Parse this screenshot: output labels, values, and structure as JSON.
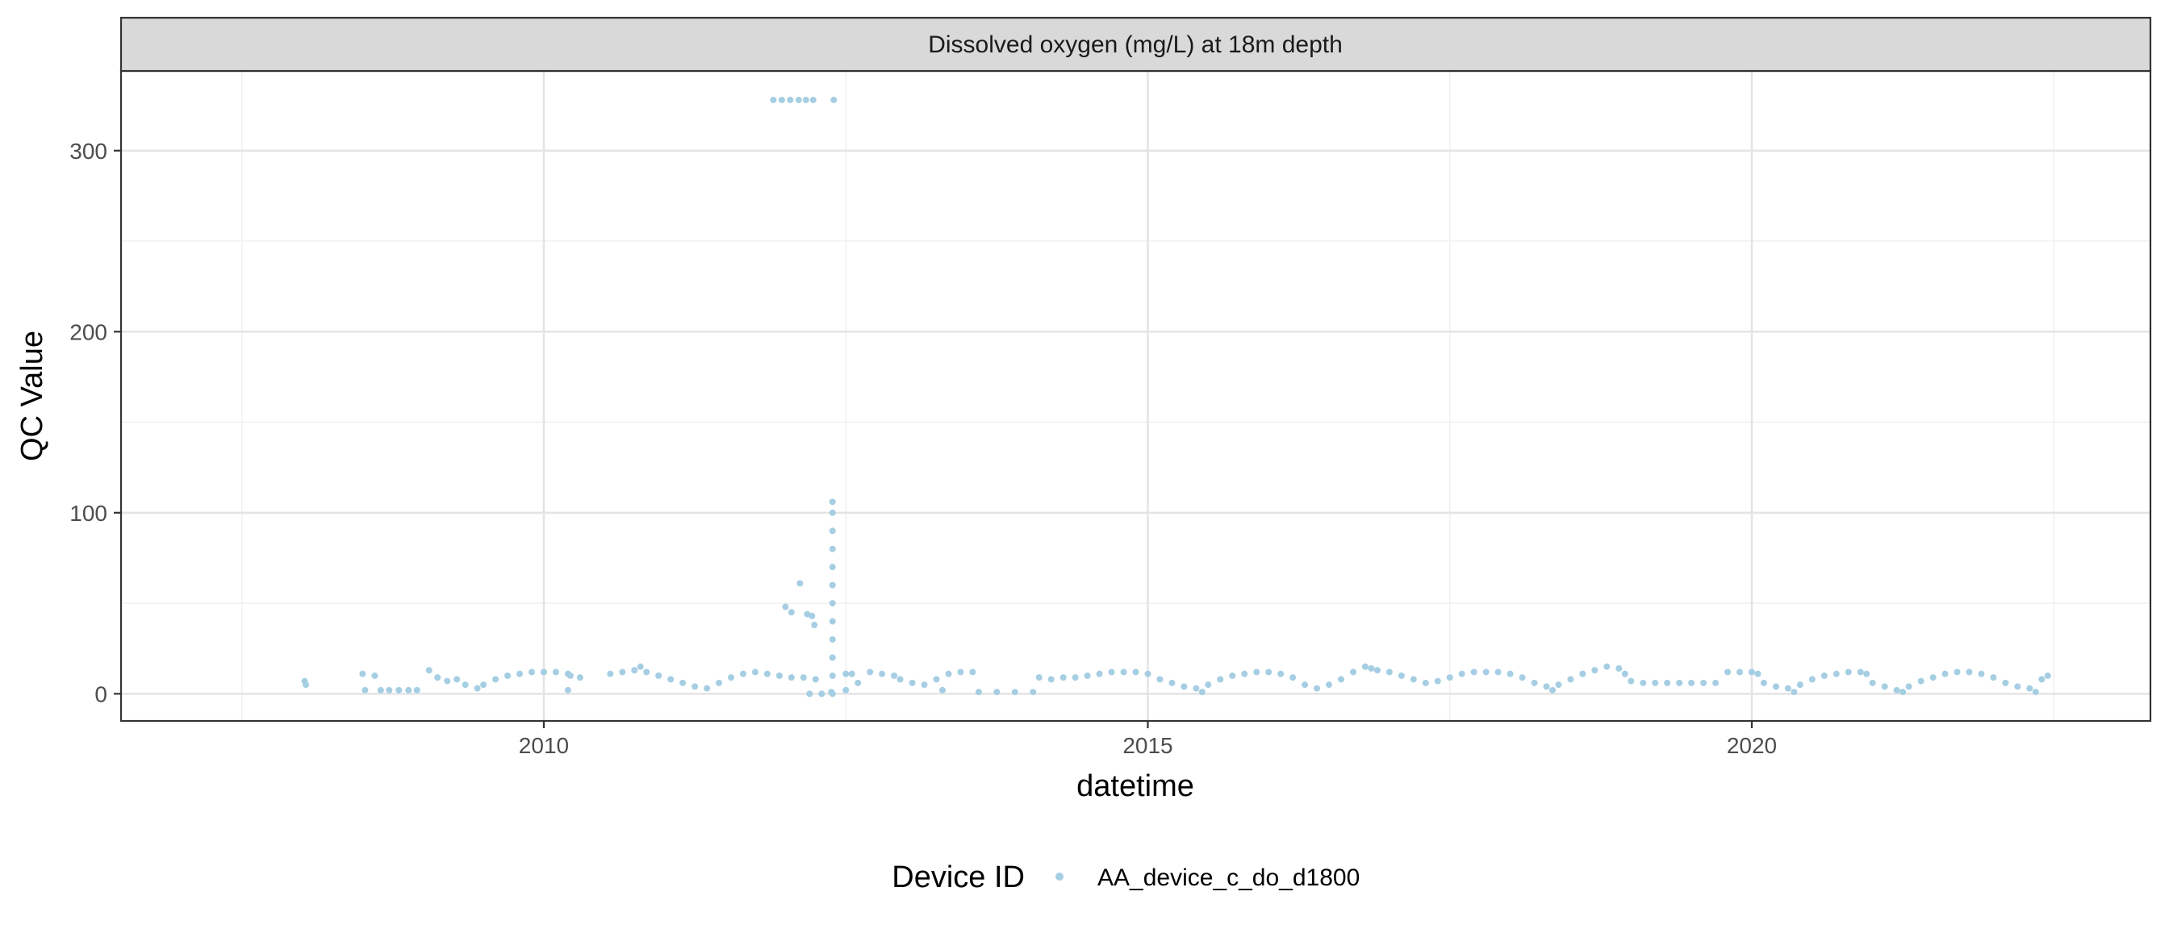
{
  "chart_data": {
    "type": "scatter",
    "title": "Dissolved oxygen (mg/L) at 18m depth",
    "xlabel": "datetime",
    "ylabel": "QC Value",
    "xlim": [
      2006.5,
      2023.3
    ],
    "ylim": [
      -15,
      344
    ],
    "x_ticks": [
      {
        "value": 2010,
        "label": "2010"
      },
      {
        "value": 2015,
        "label": "2015"
      },
      {
        "value": 2020,
        "label": "2020"
      }
    ],
    "y_ticks": [
      {
        "value": 0,
        "label": "0"
      },
      {
        "value": 100,
        "label": "100"
      },
      {
        "value": 200,
        "label": "200"
      },
      {
        "value": 300,
        "label": "300"
      }
    ],
    "grid": true,
    "legend": {
      "title": "Device ID",
      "position": "bottom"
    },
    "series": [
      {
        "name": "AA_device_c_do_d1800",
        "color": "#a6cee3",
        "points": [
          [
            2008.02,
            7
          ],
          [
            2008.03,
            5
          ],
          [
            2008.5,
            11
          ],
          [
            2008.52,
            2
          ],
          [
            2008.6,
            10
          ],
          [
            2008.65,
            2
          ],
          [
            2008.72,
            2
          ],
          [
            2008.8,
            2
          ],
          [
            2008.88,
            2
          ],
          [
            2008.95,
            2
          ],
          [
            2009.05,
            13
          ],
          [
            2009.12,
            9
          ],
          [
            2009.2,
            7
          ],
          [
            2009.28,
            8
          ],
          [
            2009.35,
            5
          ],
          [
            2009.45,
            3
          ],
          [
            2009.5,
            5
          ],
          [
            2009.6,
            8
          ],
          [
            2009.7,
            10
          ],
          [
            2009.8,
            11
          ],
          [
            2009.9,
            12
          ],
          [
            2010.0,
            12
          ],
          [
            2010.1,
            12
          ],
          [
            2010.2,
            11
          ],
          [
            2010.2,
            2
          ],
          [
            2010.22,
            10
          ],
          [
            2010.3,
            9
          ],
          [
            2010.55,
            11
          ],
          [
            2010.65,
            12
          ],
          [
            2010.75,
            13
          ],
          [
            2010.8,
            15
          ],
          [
            2010.85,
            12
          ],
          [
            2010.95,
            10
          ],
          [
            2011.05,
            8
          ],
          [
            2011.15,
            6
          ],
          [
            2011.25,
            4
          ],
          [
            2011.35,
            3
          ],
          [
            2011.45,
            6
          ],
          [
            2011.55,
            9
          ],
          [
            2011.65,
            11
          ],
          [
            2011.75,
            12
          ],
          [
            2011.85,
            11
          ],
          [
            2011.95,
            10
          ],
          [
            2012.05,
            9
          ],
          [
            2012.15,
            9
          ],
          [
            2012.25,
            8
          ],
          [
            2012.2,
            0
          ],
          [
            2012.3,
            0
          ],
          [
            2012.38,
            1
          ],
          [
            2012.0,
            48
          ],
          [
            2012.05,
            45
          ],
          [
            2012.12,
            61
          ],
          [
            2012.18,
            44
          ],
          [
            2012.22,
            43
          ],
          [
            2012.24,
            38
          ],
          [
            2011.9,
            328
          ],
          [
            2011.97,
            328
          ],
          [
            2012.04,
            328
          ],
          [
            2012.11,
            328
          ],
          [
            2012.17,
            328
          ],
          [
            2012.23,
            328
          ],
          [
            2012.4,
            328
          ],
          [
            2012.39,
            0
          ],
          [
            2012.39,
            10
          ],
          [
            2012.39,
            20
          ],
          [
            2012.39,
            30
          ],
          [
            2012.39,
            40
          ],
          [
            2012.39,
            50
          ],
          [
            2012.39,
            60
          ],
          [
            2012.39,
            70
          ],
          [
            2012.39,
            80
          ],
          [
            2012.39,
            90
          ],
          [
            2012.39,
            100
          ],
          [
            2012.39,
            106
          ],
          [
            2012.5,
            11
          ],
          [
            2012.55,
            11
          ],
          [
            2012.7,
            12
          ],
          [
            2012.8,
            11
          ],
          [
            2012.9,
            10
          ],
          [
            2012.95,
            8
          ],
          [
            2012.5,
            2
          ],
          [
            2012.6,
            6
          ],
          [
            2013.05,
            6
          ],
          [
            2013.15,
            5
          ],
          [
            2013.25,
            8
          ],
          [
            2013.35,
            11
          ],
          [
            2013.45,
            12
          ],
          [
            2013.55,
            12
          ],
          [
            2013.3,
            2
          ],
          [
            2013.6,
            1
          ],
          [
            2013.75,
            1
          ],
          [
            2013.9,
            1
          ],
          [
            2014.05,
            1
          ],
          [
            2014.1,
            9
          ],
          [
            2014.2,
            8
          ],
          [
            2014.3,
            9
          ],
          [
            2014.4,
            9
          ],
          [
            2014.5,
            10
          ],
          [
            2014.6,
            11
          ],
          [
            2014.7,
            12
          ],
          [
            2014.8,
            12
          ],
          [
            2014.9,
            12
          ],
          [
            2015.0,
            11
          ],
          [
            2015.1,
            8
          ],
          [
            2015.2,
            6
          ],
          [
            2015.3,
            4
          ],
          [
            2015.4,
            3
          ],
          [
            2015.45,
            1
          ],
          [
            2015.5,
            5
          ],
          [
            2015.6,
            8
          ],
          [
            2015.7,
            10
          ],
          [
            2015.8,
            11
          ],
          [
            2015.9,
            12
          ],
          [
            2016.0,
            12
          ],
          [
            2016.1,
            11
          ],
          [
            2016.2,
            9
          ],
          [
            2016.3,
            5
          ],
          [
            2016.4,
            3
          ],
          [
            2016.5,
            5
          ],
          [
            2016.6,
            8
          ],
          [
            2016.7,
            12
          ],
          [
            2016.8,
            15
          ],
          [
            2016.85,
            14
          ],
          [
            2016.9,
            13
          ],
          [
            2017.0,
            12
          ],
          [
            2017.1,
            10
          ],
          [
            2017.2,
            8
          ],
          [
            2017.3,
            6
          ],
          [
            2017.4,
            7
          ],
          [
            2017.5,
            9
          ],
          [
            2017.6,
            11
          ],
          [
            2017.7,
            12
          ],
          [
            2017.8,
            12
          ],
          [
            2017.9,
            12
          ],
          [
            2018.0,
            11
          ],
          [
            2018.1,
            9
          ],
          [
            2018.2,
            6
          ],
          [
            2018.3,
            4
          ],
          [
            2018.35,
            2
          ],
          [
            2018.4,
            5
          ],
          [
            2018.5,
            8
          ],
          [
            2018.6,
            11
          ],
          [
            2018.7,
            13
          ],
          [
            2018.8,
            15
          ],
          [
            2018.9,
            14
          ],
          [
            2018.95,
            11
          ],
          [
            2019.0,
            7
          ],
          [
            2019.1,
            6
          ],
          [
            2019.2,
            6
          ],
          [
            2019.3,
            6
          ],
          [
            2019.4,
            6
          ],
          [
            2019.5,
            6
          ],
          [
            2019.6,
            6
          ],
          [
            2019.7,
            6
          ],
          [
            2019.8,
            12
          ],
          [
            2019.9,
            12
          ],
          [
            2020.0,
            12
          ],
          [
            2020.05,
            11
          ],
          [
            2020.1,
            6
          ],
          [
            2020.2,
            4
          ],
          [
            2020.3,
            3
          ],
          [
            2020.35,
            1
          ],
          [
            2020.4,
            5
          ],
          [
            2020.5,
            8
          ],
          [
            2020.6,
            10
          ],
          [
            2020.7,
            11
          ],
          [
            2020.8,
            12
          ],
          [
            2020.9,
            12
          ],
          [
            2020.95,
            11
          ],
          [
            2021.0,
            6
          ],
          [
            2021.1,
            4
          ],
          [
            2021.2,
            2
          ],
          [
            2021.25,
            1
          ],
          [
            2021.3,
            4
          ],
          [
            2021.4,
            7
          ],
          [
            2021.5,
            9
          ],
          [
            2021.6,
            11
          ],
          [
            2021.7,
            12
          ],
          [
            2021.8,
            12
          ],
          [
            2021.9,
            11
          ],
          [
            2022.0,
            9
          ],
          [
            2022.1,
            6
          ],
          [
            2022.2,
            4
          ],
          [
            2022.3,
            3
          ],
          [
            2022.35,
            1
          ],
          [
            2022.4,
            8
          ],
          [
            2022.45,
            10
          ]
        ]
      }
    ]
  }
}
